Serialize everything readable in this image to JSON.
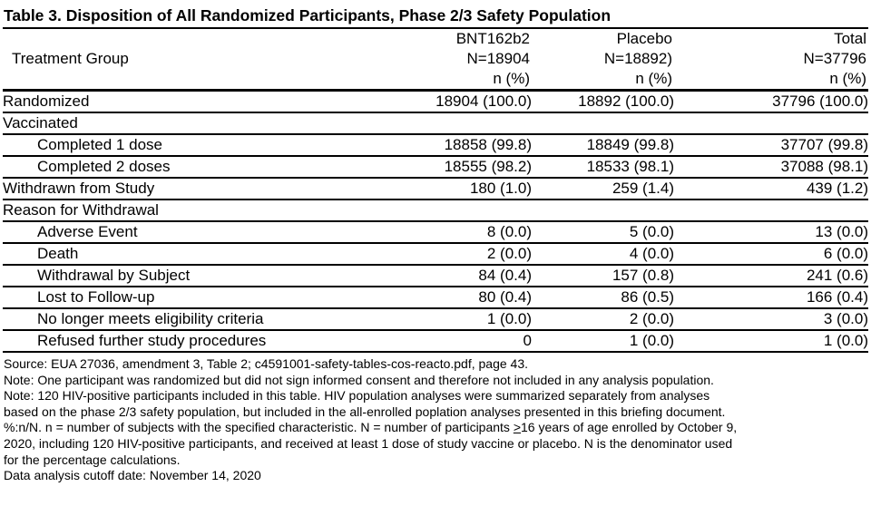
{
  "title": "Table 3. Disposition of All Randomized Participants, Phase 2/3 Safety Population",
  "colors": {
    "text": "#000000",
    "background": "#ffffff",
    "rule": "#000000"
  },
  "table": {
    "row_label_header": "Treatment Group",
    "columns": [
      {
        "group": "BNT162b2",
        "n": "N=18904",
        "stat": "n (%)"
      },
      {
        "group": "Placebo",
        "n": "N=18892)",
        "stat": "n (%)"
      },
      {
        "group": "Total",
        "n": "N=37796",
        "stat": "n (%)"
      }
    ],
    "rows": [
      {
        "label": "Randomized",
        "indent": false,
        "values": [
          "18904 (100.0)",
          "18892 (100.0)",
          "37796 (100.0)"
        ]
      },
      {
        "label": "Vaccinated",
        "indent": false,
        "values": [
          "",
          "",
          ""
        ]
      },
      {
        "label": "Completed 1 dose",
        "indent": true,
        "values": [
          "18858 (99.8)",
          "18849 (99.8)",
          "37707 (99.8)"
        ]
      },
      {
        "label": "Completed 2 doses",
        "indent": true,
        "values": [
          "18555 (98.2)",
          "18533 (98.1)",
          "37088 (98.1)"
        ]
      },
      {
        "label": "Withdrawn from Study",
        "indent": false,
        "values": [
          "180 (1.0)",
          "259 (1.4)",
          "439 (1.2)"
        ]
      },
      {
        "label": "Reason for Withdrawal",
        "indent": false,
        "values": [
          "",
          "",
          ""
        ]
      },
      {
        "label": "Adverse Event",
        "indent": true,
        "values": [
          "8 (0.0)",
          "5 (0.0)",
          "13 (0.0)"
        ]
      },
      {
        "label": "Death",
        "indent": true,
        "values": [
          "2 (0.0)",
          "4 (0.0)",
          "6 (0.0)"
        ]
      },
      {
        "label": "Withdrawal by Subject",
        "indent": true,
        "values": [
          "84 (0.4)",
          "157 (0.8)",
          "241 (0.6)"
        ]
      },
      {
        "label": "Lost to Follow-up",
        "indent": true,
        "values": [
          "80 (0.4)",
          "86 (0.5)",
          "166 (0.4)"
        ]
      },
      {
        "label": "No longer meets eligibility criteria",
        "indent": true,
        "values": [
          "1 (0.0)",
          "2 (0.0)",
          "3 (0.0)"
        ]
      },
      {
        "label": "Refused further study procedures",
        "indent": true,
        "values": [
          "0",
          "1 (0.0)",
          "1 (0.0)"
        ]
      }
    ]
  },
  "footnotes": {
    "lines": [
      [
        {
          "t": "Source: EUA 27036, amendment 3, Table 2; c4591001-safety-tables-cos-reacto.pdf, page 43."
        }
      ],
      [
        {
          "t": "Note: One participant was randomized but did not sign informed consent and therefore not included in any analysis population."
        }
      ],
      [
        {
          "t": "Note: 120 HIV-positive participants included in this table. HIV population analyses were summarized separately from analyses"
        }
      ],
      [
        {
          "t": "based on the phase 2/3 safety population, but included in the all-enrolled poplation analyses presented in this briefing document."
        }
      ],
      [
        {
          "t": "%:n/N. n = number of subjects with the specified characteristic. N = number of participants "
        },
        {
          "t": ">",
          "u": true
        },
        {
          "t": "16 years of age enrolled by October 9,"
        }
      ],
      [
        {
          "t": "2020, including 120 HIV-positive participants, and received at least 1 dose of study vaccine or placebo. N is the denominator used"
        }
      ],
      [
        {
          "t": "for the percentage calculations."
        }
      ],
      [
        {
          "t": "Data analysis cutoff date: November 14, 2020"
        }
      ]
    ]
  }
}
